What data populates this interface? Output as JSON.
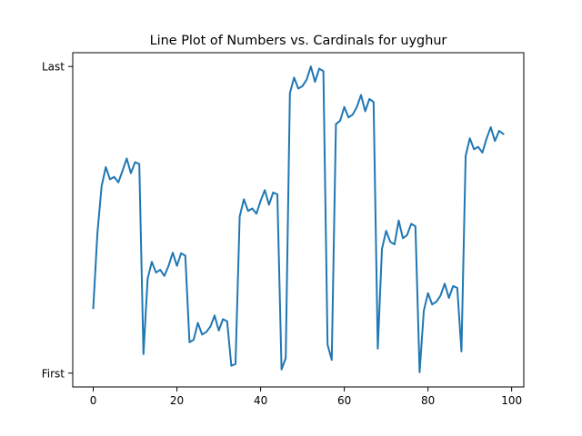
{
  "chart_data": {
    "type": "line",
    "title": "Line Plot of Numbers vs. Cardinals for uyghur",
    "xlabel": "",
    "ylabel": "",
    "xlim": [
      -4.9,
      102.9
    ],
    "ylim": [
      -0.045,
      1.045
    ],
    "grid": false,
    "legend": "none",
    "x_ticks": [
      {
        "value": 0,
        "label": "0"
      },
      {
        "value": 20,
        "label": "20"
      },
      {
        "value": 40,
        "label": "40"
      },
      {
        "value": 60,
        "label": "60"
      },
      {
        "value": 80,
        "label": "80"
      },
      {
        "value": 100,
        "label": "100"
      }
    ],
    "y_ticks": [
      {
        "value": 0,
        "label": "First"
      },
      {
        "value": 1,
        "label": "Last"
      }
    ],
    "line_color": "#1f77b4",
    "series": [
      {
        "x": [
          0,
          1,
          2,
          3,
          4,
          5,
          6,
          7,
          8,
          9,
          10,
          11,
          12,
          13,
          14,
          15,
          16,
          17,
          18,
          19,
          20,
          21,
          22,
          23,
          24,
          25,
          26,
          27,
          28,
          29,
          30,
          31,
          32,
          33,
          34,
          35,
          36,
          37,
          38,
          39,
          40,
          41,
          42,
          43,
          44,
          45,
          46,
          47,
          48,
          49,
          50,
          51,
          52,
          53,
          54,
          55,
          56,
          57,
          58,
          59,
          60,
          61,
          62,
          63,
          64,
          65,
          66,
          67,
          68,
          69,
          70,
          71,
          72,
          73,
          74,
          75,
          76,
          77,
          78,
          79,
          80,
          81,
          82,
          83,
          84,
          85,
          86,
          87,
          88,
          89,
          90,
          91,
          92,
          93,
          94,
          95,
          96,
          97,
          98
        ],
        "values": [
          0.212,
          0.458,
          0.61,
          0.672,
          0.632,
          0.64,
          0.622,
          0.66,
          0.7,
          0.652,
          0.688,
          0.682,
          0.062,
          0.308,
          0.363,
          0.328,
          0.337,
          0.317,
          0.35,
          0.393,
          0.35,
          0.391,
          0.383,
          0.101,
          0.109,
          0.164,
          0.126,
          0.134,
          0.152,
          0.188,
          0.139,
          0.176,
          0.169,
          0.024,
          0.03,
          0.511,
          0.567,
          0.529,
          0.537,
          0.52,
          0.562,
          0.597,
          0.549,
          0.589,
          0.583,
          0.012,
          0.049,
          0.913,
          0.964,
          0.928,
          0.936,
          0.957,
          1.0,
          0.95,
          0.993,
          0.985,
          0.093,
          0.043,
          0.812,
          0.823,
          0.868,
          0.834,
          0.843,
          0.868,
          0.907,
          0.854,
          0.894,
          0.884,
          0.08,
          0.405,
          0.464,
          0.428,
          0.42,
          0.498,
          0.44,
          0.45,
          0.487,
          0.479,
          0.003,
          0.203,
          0.261,
          0.224,
          0.233,
          0.253,
          0.292,
          0.245,
          0.284,
          0.278,
          0.071,
          0.708,
          0.766,
          0.73,
          0.738,
          0.719,
          0.765,
          0.802,
          0.757,
          0.79,
          0.78
        ]
      }
    ]
  }
}
